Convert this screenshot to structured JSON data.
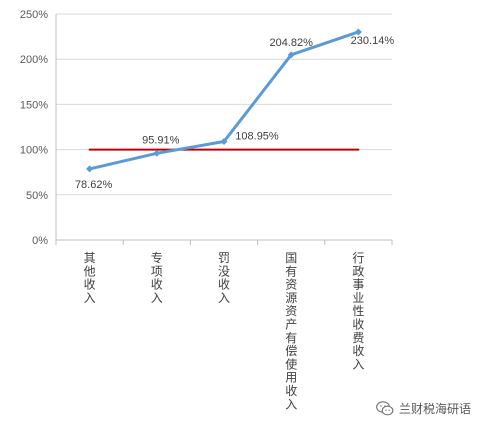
{
  "chart_data": {
    "type": "line",
    "categories": [
      "其他收入",
      "专项收入",
      "罚没收入",
      "国有资源资产有偿使用收入",
      "行政事业性收费收入"
    ],
    "series": [
      {
        "values": [
          78.62,
          95.91,
          108.95,
          204.82,
          230.14
        ],
        "color": "#5b9bd5"
      },
      {
        "values": [
          100,
          100,
          100,
          100,
          100
        ],
        "color": "#c00000"
      }
    ],
    "data_labels": [
      "78.62%",
      "95.91%",
      "108.95%",
      "204.82%",
      "230.14%"
    ],
    "y_ticks": [
      {
        "value": 0,
        "label": "0%"
      },
      {
        "value": 50,
        "label": "50%"
      },
      {
        "value": 100,
        "label": "100%"
      },
      {
        "value": 150,
        "label": "150%"
      },
      {
        "value": 200,
        "label": "200%"
      },
      {
        "value": 250,
        "label": "250%"
      }
    ],
    "ylim": [
      0,
      250
    ],
    "grid": true,
    "title": "",
    "xlabel": "",
    "ylabel": ""
  },
  "watermark": {
    "text": "兰财税海研语",
    "icon": "wechat-icon"
  }
}
